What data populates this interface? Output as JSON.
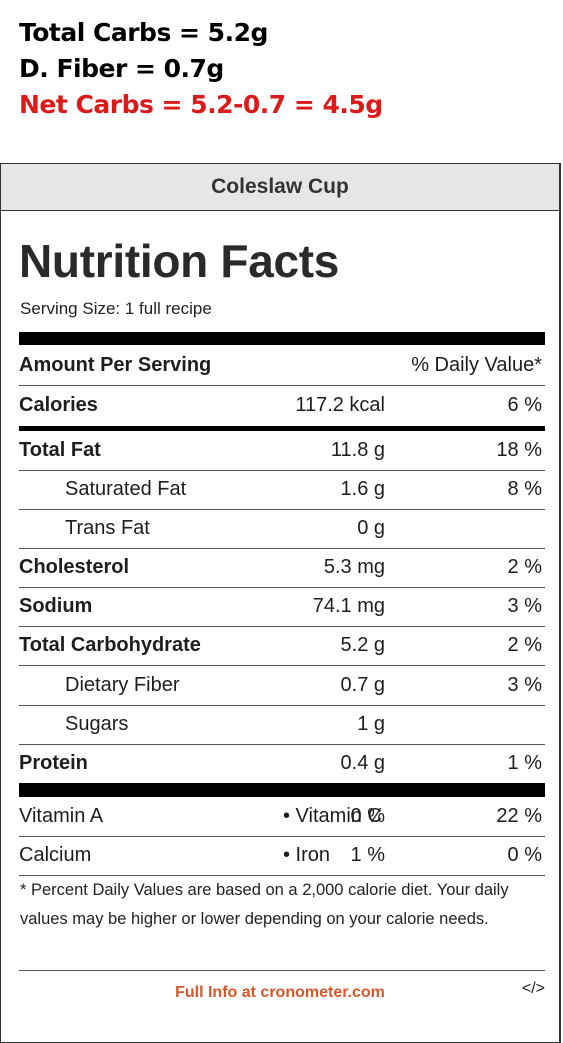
{
  "notes": {
    "line1": "Total Carbs = 5.2g",
    "line2": "D. Fiber = 0.7g",
    "line3": "Net Carbs = 5.2-0.7 = 4.5g",
    "line3_color": "#dc1a1a"
  },
  "label": {
    "title": "Coleslaw Cup",
    "heading": "Nutrition Facts",
    "serving": "Serving Size: 1 full recipe",
    "amount_header": "Amount Per Serving",
    "dv_header": "% Daily Value*",
    "rows": [
      {
        "name": "Calories",
        "amount": "117.2 kcal",
        "dv": "6 %",
        "style": "bold"
      },
      {
        "name": "Total Fat",
        "amount": "11.8 g",
        "dv": "18 %",
        "style": "bold"
      },
      {
        "name": "Saturated Fat",
        "amount": "1.6 g",
        "dv": "8 %",
        "style": "indent"
      },
      {
        "name": "Trans Fat",
        "amount": "0 g",
        "dv": "",
        "style": "indent"
      },
      {
        "name": "Cholesterol",
        "amount": "5.3 mg",
        "dv": "2 %",
        "style": "bold"
      },
      {
        "name": "Sodium",
        "amount": "74.1 mg",
        "dv": "3 %",
        "style": "bold"
      },
      {
        "name": "Total Carbohydrate",
        "amount": "5.2 g",
        "dv": "2 %",
        "style": "bold"
      },
      {
        "name": "Dietary Fiber",
        "amount": "0.7 g",
        "dv": "3 %",
        "style": "indent"
      },
      {
        "name": "Sugars",
        "amount": "1 g",
        "dv": "",
        "style": "indent"
      },
      {
        "name": "Protein",
        "amount": "0.4 g",
        "dv": "1 %",
        "style": "bold"
      }
    ],
    "vitamins": [
      {
        "left": "Vitamin A",
        "left_dv": "0 %",
        "right": "• Vitamin C",
        "right_dv": "22 %"
      },
      {
        "left": "Calcium",
        "left_dv": "1 %",
        "right": "• Iron",
        "right_dv": "0 %"
      }
    ],
    "footnote": "* Percent Daily Values are based on a 2,000 calorie diet. Your daily values may be higher or lower depending on your calorie needs.",
    "full_info": "Full Info at cronometer.com",
    "embed_icon": "code-icon",
    "embed_glyph": "</>",
    "accent_color": "#d7572b"
  }
}
